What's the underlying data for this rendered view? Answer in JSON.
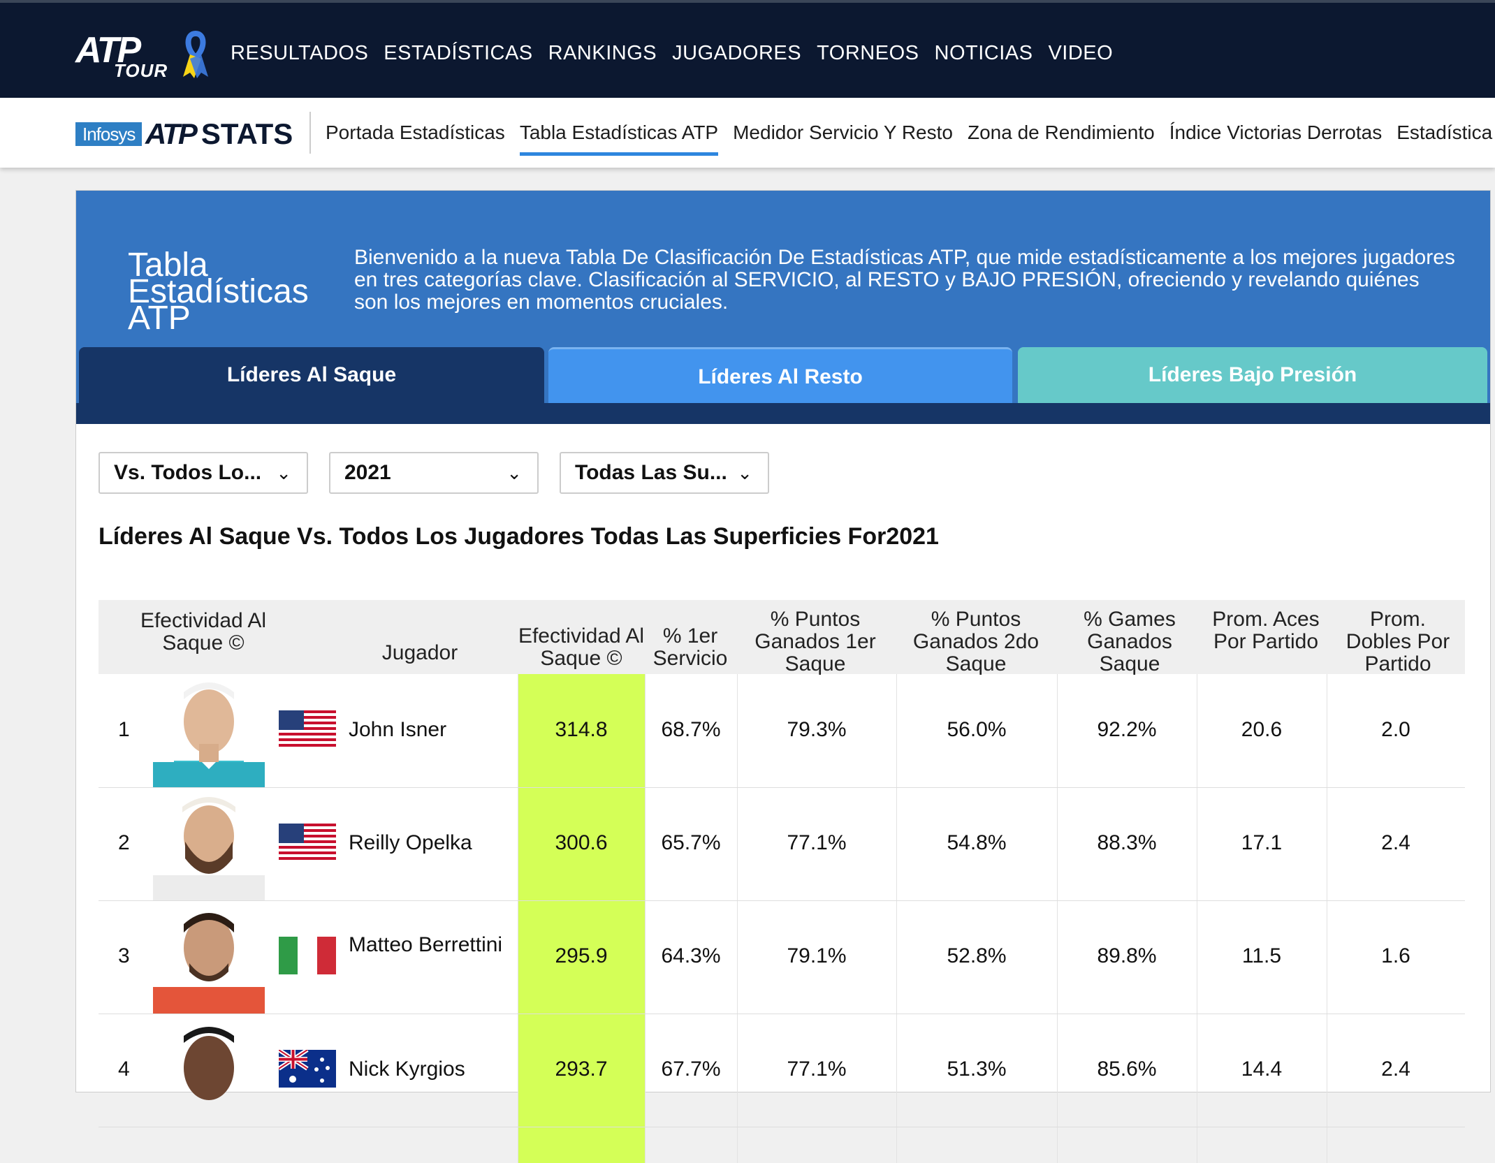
{
  "topnav": {
    "logo_main": "ATP",
    "logo_sub": "TOUR",
    "items": [
      "RESULTADOS",
      "ESTADÍSTICAS",
      "RANKINGS",
      "JUGADORES",
      "TORNEOS",
      "NOTICIAS",
      "VIDEO"
    ]
  },
  "statsnav": {
    "brand_infosys": "Infosys",
    "brand_atp": "ATP",
    "brand_stats": "STATS",
    "items": [
      "Portada Estadísticas",
      "Tabla Estadísticas ATP",
      "Medidor Servicio Y Resto",
      "Zona de Rendimiento",
      "Índice Victorias Derrotas",
      "Estadística"
    ],
    "active_index": 1
  },
  "hero": {
    "title": "Tabla Estadísticas ATP",
    "description": "Bienvenido a la nueva Tabla De Clasificación De Estadísticas ATP, que mide estadísticamente a los mejores jugadores en tres categorías clave. Clasificación al SERVICIO, al RESTO y BAJO PRESIÓN, ofreciendo y revelando quiénes son los mejores en momentos cruciales."
  },
  "tabs": [
    "Líderes Al Saque",
    "Líderes Al Resto",
    "Líderes Bajo Presión"
  ],
  "filters": {
    "opponent": "Vs. Todos Lo...",
    "year": "2021",
    "surface": "Todas Las Su..."
  },
  "section_title": "Líderes Al Saque Vs. Todos Los Jugadores Todas Las Superficies For2021",
  "table": {
    "headers": {
      "rank": "Efectividad Al Saque ©",
      "player": "Jugador",
      "rating": "Efectividad Al Saque ©",
      "first_serve": "% 1er Servicio",
      "first_won": "% Puntos Ganados 1er Saque",
      "second_won": "% Puntos Ganados 2do Saque",
      "games_won": "% Games Ganados Saque",
      "aces": "Prom. Aces Por Partido",
      "doubles": "Prom. Dobles Por Partido"
    },
    "rows": [
      {
        "rank": "1",
        "player": "John Isner",
        "country": "USA",
        "rating": "314.8",
        "first_serve": "68.7%",
        "first_won": "79.3%",
        "second_won": "56.0%",
        "games_won": "92.2%",
        "aces": "20.6",
        "doubles": "2.0"
      },
      {
        "rank": "2",
        "player": "Reilly Opelka",
        "country": "USA",
        "rating": "300.6",
        "first_serve": "65.7%",
        "first_won": "77.1%",
        "second_won": "54.8%",
        "games_won": "88.3%",
        "aces": "17.1",
        "doubles": "2.4"
      },
      {
        "rank": "3",
        "player": "Matteo Berrettini",
        "country": "ITA",
        "rating": "295.9",
        "first_serve": "64.3%",
        "first_won": "79.1%",
        "second_won": "52.8%",
        "games_won": "89.8%",
        "aces": "11.5",
        "doubles": "1.6"
      },
      {
        "rank": "4",
        "player": "Nick Kyrgios",
        "country": "AUS",
        "rating": "293.7",
        "first_serve": "67.7%",
        "first_won": "77.1%",
        "second_won": "51.3%",
        "games_won": "85.6%",
        "aces": "14.4",
        "doubles": "2.4"
      }
    ]
  },
  "colors": {
    "topbar": "#0c1830",
    "hero": "#3575c1",
    "tab_serve": "#163566",
    "tab_return": "#4294ee",
    "tab_pressure": "#66c9c9",
    "highlight": "#d4ff57",
    "active_underline": "#2e86de"
  }
}
